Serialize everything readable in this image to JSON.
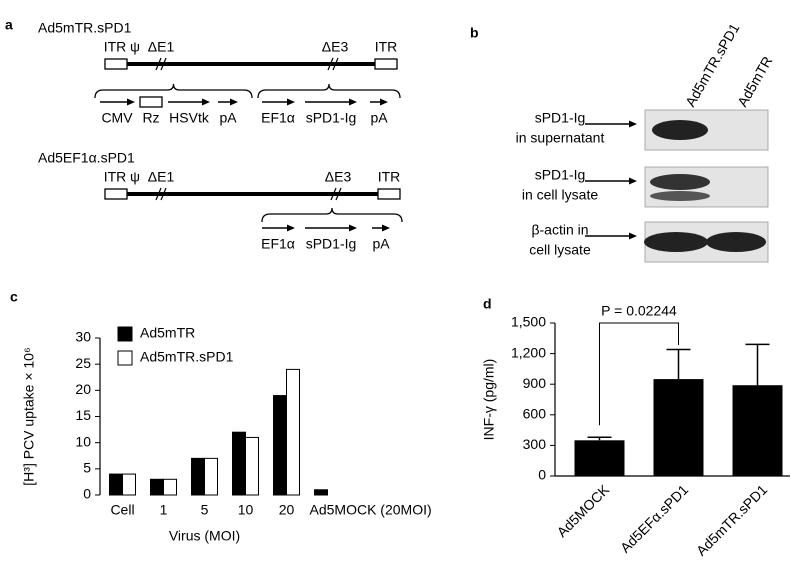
{
  "panel_a": {
    "label": "a",
    "constructs": [
      {
        "name": "Ad5mTR.sPD1",
        "top_labels": [
          "ITR",
          "ψ",
          "ΔE1",
          "ΔE3",
          "ITR"
        ],
        "elements": [
          "CMV",
          "Rz",
          "HSVtk",
          "pA",
          "EF1α",
          "sPD1-Ig",
          "pA"
        ]
      },
      {
        "name": "Ad5EF1α.sPD1",
        "top_labels": [
          "ITR",
          "ψ",
          "ΔE1",
          "ΔE3",
          "ITR"
        ],
        "elements": [
          "EF1α",
          "sPD1-Ig",
          "pA"
        ]
      }
    ]
  },
  "panel_b": {
    "label": "b",
    "lanes": [
      "Ad5mTR.sPD1",
      "Ad5mTR"
    ],
    "rows": [
      [
        "sPD1-Ig",
        "in supernatant"
      ],
      [
        "sPD1-Ig",
        "in cell lysate"
      ],
      [
        "β-actin in",
        "cell lysate"
      ]
    ]
  },
  "chart_data": [
    {
      "type": "bar",
      "label": "c",
      "categories": [
        "Cell",
        "1",
        "5",
        "10",
        "20",
        "Ad5MOCK (20MOI)"
      ],
      "series": [
        {
          "name": "Ad5mTR",
          "color": "#000000",
          "values": [
            4,
            3,
            7,
            12,
            19,
            1
          ]
        },
        {
          "name": "Ad5mTR.sPD1",
          "color": "#ffffff",
          "values": [
            4,
            3,
            7,
            11,
            24,
            null
          ]
        }
      ],
      "ylim": [
        0,
        30
      ],
      "yticks": [
        0,
        5,
        10,
        15,
        20,
        25,
        30
      ],
      "y_label": "[H³] PCV uptake × 10⁶",
      "x_label": "Virus (MOI)",
      "legend": "upper left"
    },
    {
      "type": "bar",
      "label": "d",
      "categories": [
        "Ad5MOCK",
        "Ad5EFα.sPD1",
        "Ad5mTR.sPD1"
      ],
      "values": [
        350,
        950,
        890
      ],
      "errors": [
        30,
        290,
        400
      ],
      "color": "#000000",
      "ylim": [
        0,
        1500
      ],
      "yticks": [
        0,
        300,
        600,
        900,
        {
          "value": 1200,
          "label": "1,200"
        },
        {
          "value": 1500,
          "label": "1,500"
        }
      ],
      "y_label": "INF-γ (pg/ml)",
      "annotation": "P = 0.02244"
    }
  ]
}
